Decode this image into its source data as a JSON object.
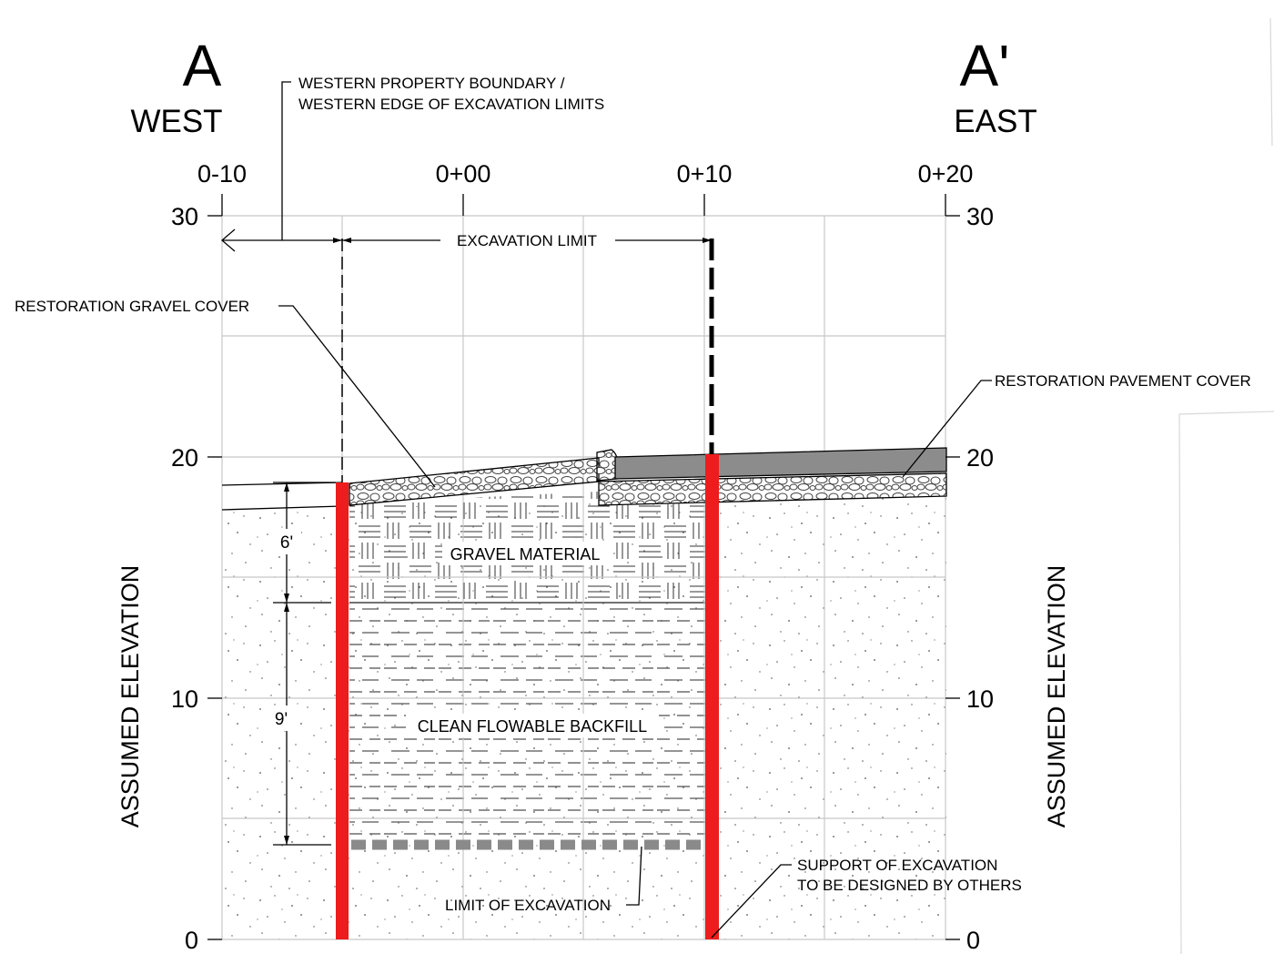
{
  "section": {
    "west_mark": "A",
    "west_label": "WEST",
    "east_mark": "A'",
    "east_label": "EAST"
  },
  "stations": [
    "0-10",
    "0+00",
    "0+10",
    "0+20"
  ],
  "elevations_left": [
    "30",
    "20",
    "10",
    "0"
  ],
  "elevations_right": [
    "30",
    "20",
    "10",
    "0"
  ],
  "axis_left_label": "ASSUMED ELEVATION",
  "axis_right_label": "ASSUMED ELEVATION",
  "callouts": {
    "boundary_line1": "WESTERN PROPERTY BOUNDARY /",
    "boundary_line2": "WESTERN EDGE OF EXCAVATION LIMITS",
    "excavation_limit": "EXCAVATION LIMIT",
    "gravel_cover": "RESTORATION GRAVEL COVER",
    "pavement_cover": "RESTORATION PAVEMENT COVER",
    "support_line1": "SUPPORT OF EXCAVATION",
    "support_line2": "TO BE DESIGNED BY OTHERS",
    "limit_of_excavation": "LIMIT OF EXCAVATION"
  },
  "layers": {
    "gravel_material": "GRAVEL MATERIAL",
    "backfill": "CLEAN FLOWABLE BACKFILL"
  },
  "dimensions": {
    "upper": "6'",
    "lower": "9'"
  },
  "colors": {
    "shoring": "#ee1c1c",
    "pavement": "#8c8c8c",
    "grid": "#c8c8c8",
    "limit_line": "#8a8a8a"
  }
}
